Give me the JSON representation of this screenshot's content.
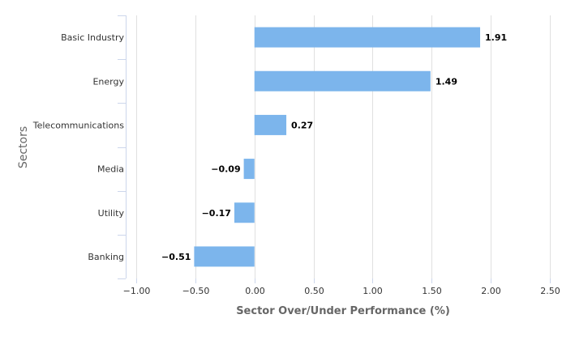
{
  "chart_data": {
    "type": "bar",
    "orientation": "horizontal",
    "categories": [
      "Basic Industry",
      "Energy",
      "Telecommunications",
      "Media",
      "Utility",
      "Banking"
    ],
    "values": [
      1.91,
      1.49,
      0.27,
      -0.09,
      -0.17,
      -0.51
    ],
    "data_labels": [
      "1.91",
      "1.49",
      "0.27",
      "−0.09",
      "−0.17",
      "−0.51"
    ],
    "xlabel": "Sector Over/Under Performance (%)",
    "ylabel": "Sectors",
    "xlim": [
      -1.0,
      2.5
    ],
    "xticks": [
      -1.0,
      -0.5,
      0.0,
      0.5,
      1.0,
      1.5,
      2.0,
      2.5
    ],
    "xtick_labels": [
      "−1.00",
      "−0.50",
      "0.00",
      "0.50",
      "1.00",
      "1.50",
      "2.00",
      "2.50"
    ],
    "grid": true,
    "bar_color": "#7cb5ec"
  }
}
